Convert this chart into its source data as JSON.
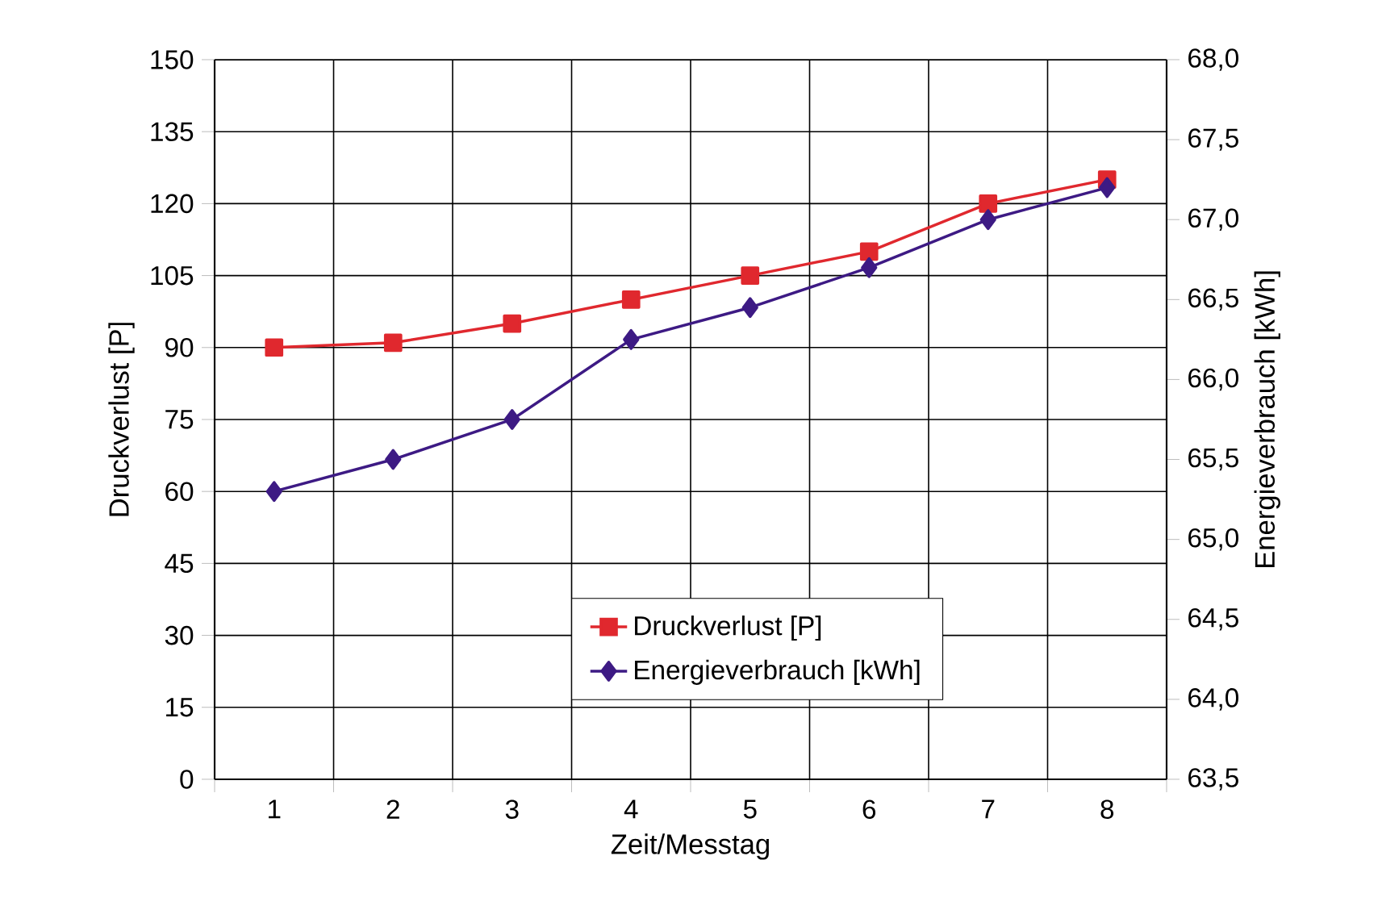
{
  "chart_data": {
    "type": "line",
    "xlabel": "Zeit/Messtag",
    "ylabel": "Druckverlust [P]",
    "y2label": "Energieverbrauch [kWh]",
    "categories": [
      "1",
      "2",
      "3",
      "4",
      "5",
      "6",
      "7",
      "8"
    ],
    "series": [
      {
        "name": "Druckverlust [P]",
        "color": "#e0282e",
        "marker": "square",
        "values": [
          90,
          91,
          95,
          100,
          105,
          110,
          120,
          125
        ]
      },
      {
        "name": "Energieverbrauch [kWh]",
        "color": "#3d1a84",
        "marker": "diamond",
        "axis": "y2",
        "values": [
          65.3,
          65.5,
          65.75,
          66.25,
          66.45,
          66.7,
          67.0,
          67.2
        ]
      }
    ],
    "ylim": [
      0,
      150
    ],
    "yticks": [
      0,
      15,
      30,
      45,
      60,
      75,
      90,
      105,
      120,
      135,
      150
    ],
    "y2lim": [
      63.5,
      68.0
    ],
    "y2ticks": [
      {
        "value": 63.5,
        "label": "63,5"
      },
      {
        "value": 64.0,
        "label": "64,0"
      },
      {
        "value": 64.5,
        "label": "64,5"
      },
      {
        "value": 65.0,
        "label": "65,0"
      },
      {
        "value": 65.5,
        "label": "65,5"
      },
      {
        "value": 66.0,
        "label": "66,0"
      },
      {
        "value": 66.5,
        "label": "66,5"
      },
      {
        "value": 67.0,
        "label": "67,0"
      },
      {
        "value": 67.5,
        "label": "67,5"
      },
      {
        "value": 68.0,
        "label": "68,0"
      }
    ],
    "grid": true,
    "legend": "bottom",
    "line_style": "solid"
  }
}
